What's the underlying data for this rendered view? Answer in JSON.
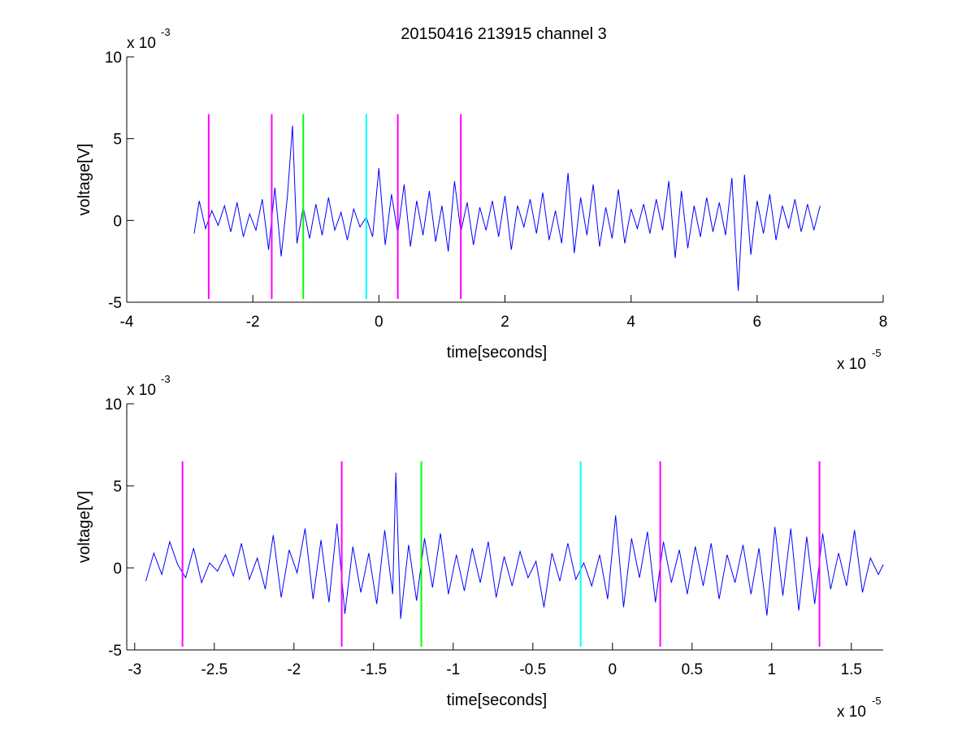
{
  "figure": {
    "title": "20150416 213915 channel 3"
  },
  "chart_data": [
    {
      "type": "line",
      "xlabel": "time[seconds]",
      "ylabel": "voltage[V]",
      "x_exponent_label": "x 10",
      "x_exponent": "-5",
      "y_exponent_label": "x 10",
      "y_exponent": "-3",
      "xlim": [
        -4,
        8
      ],
      "ylim": [
        -5,
        10
      ],
      "xticks": [
        -4,
        -2,
        0,
        2,
        4,
        6,
        8
      ],
      "xtick_labels": [
        "-4",
        "-2",
        "0",
        "2",
        "4",
        "6",
        "8"
      ],
      "yticks": [
        -5,
        0,
        5,
        10
      ],
      "ytick_labels": [
        "-5",
        "0",
        "5",
        "10"
      ],
      "grid": false,
      "series": [
        {
          "color": "#0000ff",
          "x_range": [
            -2.93,
            7.0
          ],
          "x": [
            -2.93,
            -2.85,
            -2.75,
            -2.65,
            -2.55,
            -2.45,
            -2.35,
            -2.25,
            -2.15,
            -2.05,
            -1.95,
            -1.85,
            -1.75,
            -1.65,
            -1.55,
            -1.45,
            -1.37,
            -1.3,
            -1.2,
            -1.1,
            -1.0,
            -0.9,
            -0.8,
            -0.7,
            -0.6,
            -0.5,
            -0.4,
            -0.3,
            -0.2,
            -0.1,
            0.0,
            0.1,
            0.2,
            0.3,
            0.4,
            0.5,
            0.6,
            0.7,
            0.8,
            0.9,
            1.0,
            1.1,
            1.2,
            1.3,
            1.4,
            1.5,
            1.6,
            1.7,
            1.8,
            1.9,
            2.0,
            2.1,
            2.2,
            2.3,
            2.4,
            2.5,
            2.6,
            2.7,
            2.8,
            2.9,
            3.0,
            3.1,
            3.2,
            3.3,
            3.4,
            3.5,
            3.6,
            3.7,
            3.8,
            3.9,
            4.0,
            4.1,
            4.2,
            4.3,
            4.4,
            4.5,
            4.6,
            4.7,
            4.8,
            4.9,
            5.0,
            5.1,
            5.2,
            5.3,
            5.4,
            5.5,
            5.6,
            5.7,
            5.8,
            5.9,
            6.0,
            6.1,
            6.2,
            6.3,
            6.4,
            6.5,
            6.6,
            6.7,
            6.8,
            6.9,
            7.0
          ],
          "y": [
            -0.8,
            1.2,
            -0.5,
            0.6,
            -0.3,
            0.9,
            -0.7,
            1.1,
            -1.0,
            0.4,
            -0.6,
            1.3,
            -1.8,
            2.0,
            -2.2,
            1.5,
            5.8,
            -1.4,
            0.8,
            -1.1,
            1.0,
            -0.9,
            1.4,
            -0.6,
            0.5,
            -1.2,
            0.7,
            -0.4,
            0.2,
            -1.0,
            3.2,
            -1.5,
            1.6,
            -0.8,
            2.2,
            -1.6,
            1.2,
            -0.9,
            1.8,
            -1.3,
            0.9,
            -1.9,
            2.4,
            -0.7,
            1.1,
            -1.5,
            0.8,
            -0.6,
            1.2,
            -1.0,
            1.5,
            -1.8,
            0.9,
            -0.4,
            1.3,
            -0.8,
            1.7,
            -1.2,
            0.6,
            -1.4,
            2.9,
            -2.0,
            1.4,
            -0.9,
            2.2,
            -1.6,
            0.8,
            -1.1,
            1.9,
            -1.4,
            0.7,
            -0.5,
            1.0,
            -0.8,
            1.3,
            -0.6,
            2.4,
            -2.3,
            1.8,
            -1.7,
            0.9,
            -1.0,
            1.4,
            -0.7,
            1.1,
            -0.9,
            2.6,
            -4.3,
            2.8,
            -2.1,
            1.2,
            -0.8,
            1.6,
            -1.2,
            0.9,
            -0.5,
            1.3,
            -0.7,
            1.0,
            -0.6,
            0.9
          ]
        }
      ],
      "vertical_lines": [
        {
          "x": -2.7,
          "color": "#ff00ff"
        },
        {
          "x": -1.7,
          "color": "#ff00ff"
        },
        {
          "x": -1.2,
          "color": "#00ff00"
        },
        {
          "x": -0.2,
          "color": "#00ffff"
        },
        {
          "x": 0.3,
          "color": "#ff00ff"
        },
        {
          "x": 1.3,
          "color": "#ff00ff"
        }
      ],
      "vline_y_range": [
        -4.8,
        6.5
      ]
    },
    {
      "type": "line",
      "xlabel": "time[seconds]",
      "ylabel": "voltage[V]",
      "x_exponent_label": "x 10",
      "x_exponent": "-5",
      "y_exponent_label": "x 10",
      "y_exponent": "-3",
      "xlim": [
        -3.05,
        1.7
      ],
      "ylim": [
        -5,
        10
      ],
      "xticks": [
        -3,
        -2.5,
        -2,
        -1.5,
        -1,
        -0.5,
        0,
        0.5,
        1,
        1.5
      ],
      "xtick_labels": [
        "-3",
        "-2.5",
        "-2",
        "-1.5",
        "-1",
        "-0.5",
        "0",
        "0.5",
        "1",
        "1.5"
      ],
      "yticks": [
        -5,
        0,
        5,
        10
      ],
      "ytick_labels": [
        "-5",
        "0",
        "5",
        "10"
      ],
      "grid": false,
      "series": [
        {
          "color": "#0000ff",
          "x": [
            -2.93,
            -2.88,
            -2.83,
            -2.78,
            -2.73,
            -2.68,
            -2.63,
            -2.58,
            -2.53,
            -2.48,
            -2.43,
            -2.38,
            -2.33,
            -2.28,
            -2.23,
            -2.18,
            -2.13,
            -2.08,
            -2.03,
            -1.98,
            -1.93,
            -1.88,
            -1.83,
            -1.78,
            -1.73,
            -1.68,
            -1.63,
            -1.58,
            -1.53,
            -1.48,
            -1.43,
            -1.38,
            -1.36,
            -1.33,
            -1.28,
            -1.23,
            -1.18,
            -1.13,
            -1.08,
            -1.03,
            -0.98,
            -0.93,
            -0.88,
            -0.83,
            -0.78,
            -0.73,
            -0.68,
            -0.63,
            -0.58,
            -0.53,
            -0.48,
            -0.43,
            -0.38,
            -0.33,
            -0.28,
            -0.23,
            -0.18,
            -0.13,
            -0.08,
            -0.03,
            0.02,
            0.07,
            0.12,
            0.17,
            0.22,
            0.27,
            0.32,
            0.37,
            0.42,
            0.47,
            0.52,
            0.57,
            0.62,
            0.67,
            0.72,
            0.77,
            0.82,
            0.87,
            0.92,
            0.97,
            1.02,
            1.07,
            1.12,
            1.17,
            1.22,
            1.27,
            1.32,
            1.37,
            1.42,
            1.47,
            1.52,
            1.57,
            1.62,
            1.67,
            1.7
          ],
          "y": [
            -0.8,
            0.9,
            -0.4,
            1.6,
            0.2,
            -0.6,
            1.2,
            -0.9,
            0.3,
            -0.2,
            0.8,
            -0.5,
            1.5,
            -0.7,
            0.6,
            -1.3,
            2.0,
            -1.8,
            1.1,
            -0.3,
            2.4,
            -1.9,
            1.7,
            -2.1,
            2.7,
            -2.8,
            1.3,
            -1.5,
            0.9,
            -2.2,
            2.3,
            -1.6,
            5.8,
            -3.1,
            1.4,
            -2.0,
            1.8,
            -1.2,
            2.1,
            -1.6,
            0.8,
            -1.4,
            1.2,
            -0.9,
            1.6,
            -1.8,
            0.7,
            -1.1,
            1.0,
            -0.6,
            0.4,
            -2.4,
            0.9,
            -0.8,
            1.5,
            -0.7,
            0.3,
            -1.1,
            0.8,
            -1.9,
            3.2,
            -2.4,
            1.8,
            -0.6,
            2.2,
            -2.1,
            1.6,
            -0.9,
            1.1,
            -1.6,
            1.3,
            -1.1,
            1.5,
            -1.9,
            0.8,
            -0.9,
            1.4,
            -1.6,
            1.2,
            -2.9,
            2.5,
            -1.7,
            2.4,
            -2.6,
            1.9,
            -2.2,
            2.1,
            -1.3,
            0.9,
            -1.1,
            2.3,
            -1.5,
            0.6,
            -0.4,
            0.2
          ],
          "x_range": [
            -2.93,
            1.7
          ]
        }
      ],
      "vertical_lines": [
        {
          "x": -2.7,
          "color": "#ff00ff"
        },
        {
          "x": -1.7,
          "color": "#ff00ff"
        },
        {
          "x": -1.2,
          "color": "#00ff00"
        },
        {
          "x": -0.2,
          "color": "#00ffff"
        },
        {
          "x": 0.3,
          "color": "#ff00ff"
        },
        {
          "x": 1.3,
          "color": "#ff00ff"
        }
      ],
      "vline_y_range": [
        -4.8,
        6.5
      ]
    }
  ]
}
